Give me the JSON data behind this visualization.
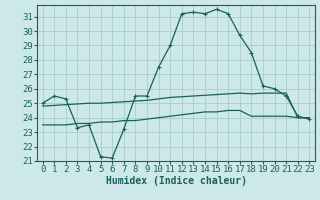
{
  "xlabel": "Humidex (Indice chaleur)",
  "background_color": "#cce8e8",
  "grid_color": "#aacccc",
  "line_color": "#1a6060",
  "xlim": [
    -0.5,
    23.5
  ],
  "ylim": [
    21,
    31.8
  ],
  "yticks": [
    21,
    22,
    23,
    24,
    25,
    26,
    27,
    28,
    29,
    30,
    31
  ],
  "xticks": [
    0,
    1,
    2,
    3,
    4,
    5,
    6,
    7,
    8,
    9,
    10,
    11,
    12,
    13,
    14,
    15,
    16,
    17,
    18,
    19,
    20,
    21,
    22,
    23
  ],
  "hours": [
    0,
    1,
    2,
    3,
    4,
    5,
    6,
    7,
    8,
    9,
    10,
    11,
    12,
    13,
    14,
    15,
    16,
    17,
    18,
    19,
    20,
    21,
    22,
    23
  ],
  "line1": [
    25.0,
    25.5,
    25.3,
    23.3,
    23.5,
    21.3,
    21.2,
    23.2,
    25.5,
    25.5,
    27.5,
    29.0,
    31.2,
    31.3,
    31.2,
    31.5,
    31.2,
    29.7,
    28.5,
    26.2,
    26.0,
    25.5,
    24.1,
    23.9
  ],
  "line2": [
    23.5,
    23.5,
    23.5,
    23.6,
    23.6,
    23.7,
    23.7,
    23.8,
    23.8,
    23.9,
    24.0,
    24.1,
    24.2,
    24.3,
    24.4,
    24.4,
    24.5,
    24.5,
    24.1,
    24.1,
    24.1,
    24.1,
    24.0,
    24.0
  ],
  "line3": [
    24.8,
    24.85,
    24.9,
    24.95,
    25.0,
    25.0,
    25.05,
    25.1,
    25.15,
    25.2,
    25.3,
    25.4,
    25.45,
    25.5,
    25.55,
    25.6,
    25.65,
    25.7,
    25.65,
    25.7,
    25.7,
    25.7,
    24.0,
    24.0
  ],
  "xlabel_fontsize": 7,
  "tick_fontsize": 6.5
}
